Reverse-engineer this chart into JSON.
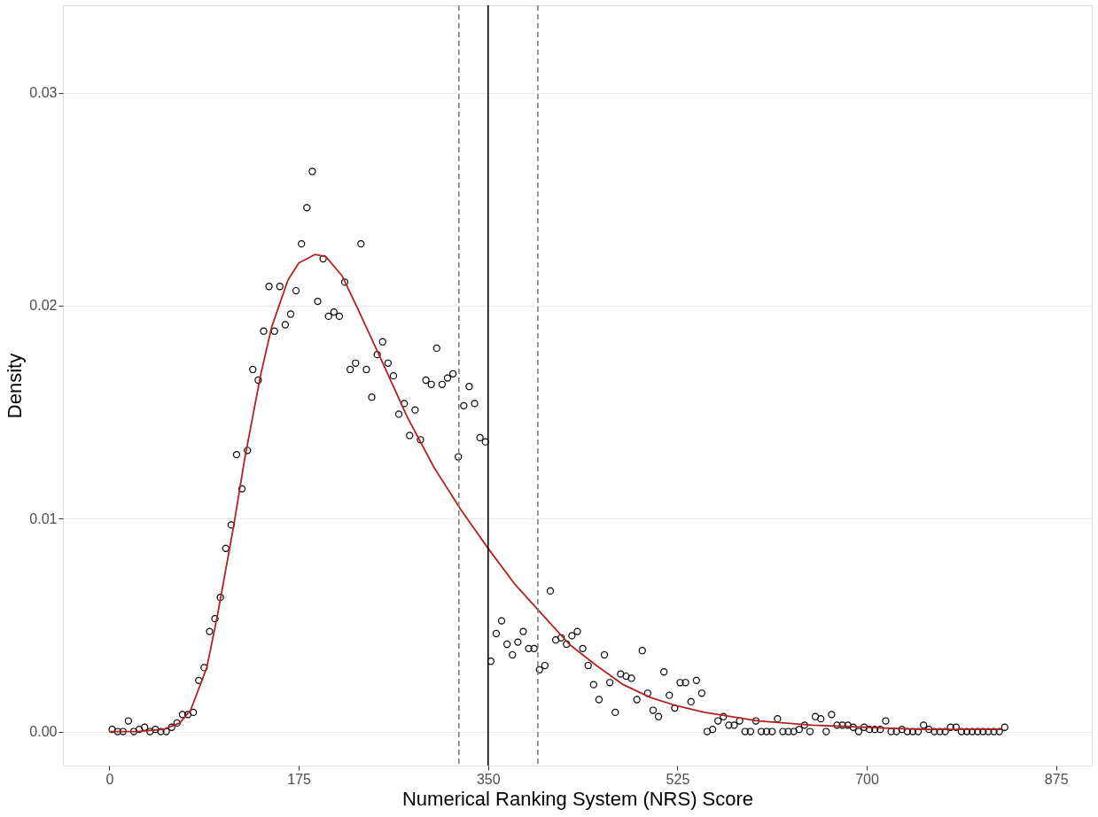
{
  "chart_data": {
    "type": "scatter",
    "xlabel": "Numerical Ranking System (NRS) Score",
    "ylabel": "Density",
    "xlim": [
      -43,
      908
    ],
    "ylim": [
      -0.0016,
      0.0341
    ],
    "xticks": [
      0,
      175,
      350,
      525,
      700,
      875
    ],
    "yticks": [
      {
        "value": 0,
        "label": "0.00"
      },
      {
        "value": 0.01,
        "label": "0.01"
      },
      {
        "value": 0.02,
        "label": "0.02"
      },
      {
        "value": 0.03,
        "label": "0.03"
      }
    ],
    "grid": "y",
    "marker": "circle",
    "series": [
      {
        "color": "#000000",
        "x": [
          2.5,
          7.5,
          12.5,
          17.5,
          22.5,
          27.5,
          32.5,
          37.5,
          42.5,
          47.5,
          52.5,
          57.5,
          62.5,
          67.5,
          72.5,
          77.5,
          82.5,
          87.5,
          92.5,
          97.5,
          102.5,
          107.5,
          112.5,
          117.5,
          122.5,
          127.5,
          132.5,
          137.5,
          142.5,
          147.5,
          152.5,
          157.5,
          162.5,
          167.5,
          172.5,
          177.5,
          182.5,
          187.5,
          192.5,
          197.5,
          202.5,
          207.5,
          212.5,
          217.5,
          222.5,
          227.5,
          232.5,
          237.5,
          242.5,
          247.5,
          252.5,
          257.5,
          262.5,
          267.5,
          272.5,
          277.5,
          282.5,
          287.5,
          292.5,
          297.5,
          302.5,
          307.5,
          312.5,
          317.5,
          322.5,
          327.5,
          332.5,
          337.5,
          342.5,
          347.5,
          352.5,
          357.5,
          362.5,
          367.5,
          372.5,
          377.5,
          382.5,
          387.5,
          392.5,
          397.5,
          402.5,
          407.5,
          412.5,
          417.5,
          422.5,
          427.5,
          432.5,
          437.5,
          442.5,
          447.5,
          452.5,
          457.5,
          462.5,
          467.5,
          472.5,
          477.5,
          482.5,
          487.5,
          492.5,
          497.5,
          502.5,
          507.5,
          512.5,
          517.5,
          522.5,
          527.5,
          532.5,
          537.5,
          542.5,
          547.5,
          552.5,
          557.5,
          562.5,
          567.5,
          572.5,
          577.5,
          582.5,
          587.5,
          592.5,
          597.5,
          602.5,
          607.5,
          612.5,
          617.5,
          622.5,
          627.5,
          632.5,
          637.5,
          642.5,
          647.5,
          652.5,
          657.5,
          662.5,
          667.5,
          672.5,
          677.5,
          682.5,
          687.5,
          692.5,
          697.5,
          702.5,
          707.5,
          712.5,
          717.5,
          722.5,
          727.5,
          732.5,
          737.5,
          742.5,
          747.5,
          752.5,
          757.5,
          762.5,
          767.5,
          772.5,
          777.5,
          782.5,
          787.5,
          792.5,
          797.5,
          802.5,
          807.5,
          812.5,
          817.5,
          822.5,
          827.5
        ],
        "values": [
          0.0001,
          0,
          0,
          0.0005,
          0,
          0.0001,
          0.0002,
          0,
          0.0001,
          0,
          0,
          0.0002,
          0.0004,
          0.0008,
          0.0008,
          0.0009,
          0.0024,
          0.003,
          0.0047,
          0.0053,
          0.0063,
          0.0086,
          0.0097,
          0.013,
          0.0114,
          0.0132,
          0.017,
          0.0165,
          0.0188,
          0.0209,
          0.0188,
          0.0209,
          0.0191,
          0.0196,
          0.0207,
          0.0229,
          0.0246,
          0.0263,
          0.0202,
          0.0222,
          0.0195,
          0.0197,
          0.0195,
          0.0211,
          0.017,
          0.0173,
          0.0229,
          0.017,
          0.0157,
          0.0177,
          0.0183,
          0.0173,
          0.0167,
          0.0149,
          0.0154,
          0.0139,
          0.0151,
          0.0137,
          0.0165,
          0.0163,
          0.018,
          0.0163,
          0.0166,
          0.0168,
          0.0129,
          0.0153,
          0.0162,
          0.0154,
          0.0138,
          0.0136,
          0.0033,
          0.0046,
          0.0052,
          0.0041,
          0.0036,
          0.0042,
          0.0047,
          0.0039,
          0.0039,
          0.0029,
          0.0031,
          0.0066,
          0.0043,
          0.0044,
          0.0041,
          0.0045,
          0.0047,
          0.0039,
          0.0031,
          0.0022,
          0.0015,
          0.0036,
          0.0023,
          0.0009,
          0.0027,
          0.0026,
          0.0025,
          0.0015,
          0.0038,
          0.0018,
          0.001,
          0.0007,
          0.0028,
          0.0017,
          0.0011,
          0.0023,
          0.0023,
          0.0014,
          0.0024,
          0.0018,
          0,
          0.0001,
          0.0005,
          0.0007,
          0.0003,
          0.0003,
          0.0005,
          0,
          0,
          0.0005,
          0,
          0,
          0,
          0.0006,
          0,
          0,
          0,
          0.0001,
          0.0003,
          0,
          0.0007,
          0.0006,
          0,
          0.0008,
          0.0003,
          0.0003,
          0.0003,
          0.0002,
          0,
          0.0002,
          0.0001,
          0.0001,
          0.0001,
          0.0005,
          0,
          0,
          0.0001,
          0,
          0,
          0,
          0.0003,
          0.0001,
          0,
          0,
          0,
          0.0002,
          0.0002,
          0,
          0,
          0,
          0,
          0,
          0,
          0,
          0,
          0.0002
        ]
      },
      {
        "type": "line",
        "color": "#b22222",
        "line_style": "solid",
        "marker": "none",
        "x": [
          0,
          25,
          50,
          65,
          75,
          90,
          100,
          115,
          125,
          140,
          150,
          165,
          175,
          190,
          200,
          215,
          230,
          250,
          275,
          300,
          325,
          350,
          375,
          400,
          425,
          450,
          475,
          500,
          525,
          550,
          600,
          650,
          700,
          750,
          825
        ],
        "values": [
          0,
          0,
          0.0001,
          0.0004,
          0.001,
          0.003,
          0.0055,
          0.0097,
          0.0128,
          0.0168,
          0.019,
          0.0212,
          0.022,
          0.0224,
          0.0223,
          0.0214,
          0.0198,
          0.0176,
          0.0148,
          0.0124,
          0.0104,
          0.0086,
          0.0069,
          0.0055,
          0.0041,
          0.0031,
          0.0022,
          0.0016,
          0.0012,
          0.0009,
          0.0005,
          0.0003,
          0.0002,
          0.0001,
          0.0001
        ]
      }
    ],
    "ref_lines": [
      {
        "axis": "x",
        "value": 350,
        "color": "#000000",
        "line_style": "solid"
      },
      {
        "axis": "x",
        "value": 323,
        "color": "#808080",
        "line_style": "dashed"
      },
      {
        "axis": "x",
        "value": 396,
        "color": "#808080",
        "line_style": "dashed"
      }
    ]
  }
}
